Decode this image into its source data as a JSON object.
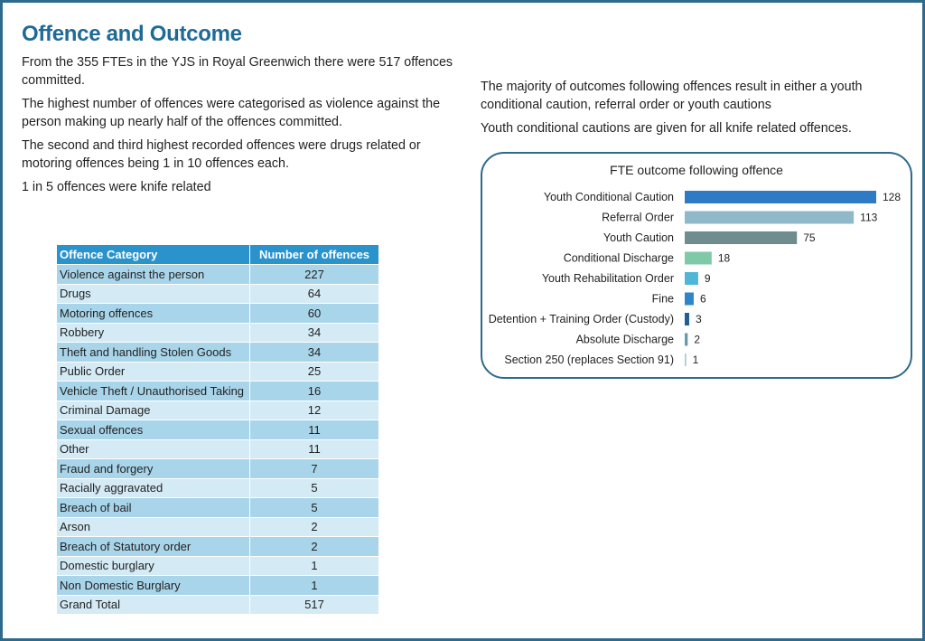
{
  "title": "Offence and Outcome",
  "left_paragraphs": [
    "From the 355 FTEs in the YJS in Royal Greenwich there were 517 offences committed.",
    "The highest number of offences were categorised as violence against the person making up nearly half of the offences committed.",
    "The second and third highest recorded offences were drugs related or motoring offences being 1 in 10 offences each.",
    "1 in 5 offences were knife related"
  ],
  "right_paragraphs": [
    "The majority of outcomes following offences result in either a youth conditional caution, referral order or youth cautions",
    "Youth conditional cautions are given for all knife related offences."
  ],
  "offence_table": {
    "headers": [
      "Offence Category",
      "Number of offences"
    ],
    "rows": [
      [
        "Violence against the person",
        "227"
      ],
      [
        "Drugs",
        "64"
      ],
      [
        "Motoring offences",
        "60"
      ],
      [
        "Robbery",
        "34"
      ],
      [
        "Theft and handling Stolen Goods",
        "34"
      ],
      [
        "Public Order",
        "25"
      ],
      [
        "Vehicle Theft / Unauthorised Taking",
        "16"
      ],
      [
        "Criminal Damage",
        "12"
      ],
      [
        "Sexual offences",
        "11"
      ],
      [
        "Other",
        "11"
      ],
      [
        "Fraud and forgery",
        "7"
      ],
      [
        "Racially aggravated",
        "5"
      ],
      [
        "Breach of bail",
        "5"
      ],
      [
        "Arson",
        "2"
      ],
      [
        "Breach of Statutory order",
        "2"
      ],
      [
        "Domestic burglary",
        "1"
      ],
      [
        "Non Domestic Burglary",
        "1"
      ],
      [
        "Grand Total",
        "517"
      ]
    ]
  },
  "chart_data": {
    "type": "bar",
    "orientation": "horizontal",
    "title": "FTE outcome following offence",
    "categories": [
      "Youth Conditional Caution",
      "Referral Order",
      "Youth Caution",
      "Conditional Discharge",
      "Youth Rehabilitation Order",
      "Fine",
      "Detention + Training Order (Custody)",
      "Absolute Discharge",
      "Section 250 (replaces Section 91)"
    ],
    "values": [
      128,
      113,
      75,
      18,
      9,
      6,
      3,
      2,
      1
    ],
    "colors": [
      "#2e7ac4",
      "#8fb8c8",
      "#6f8c8e",
      "#7fc8a8",
      "#4fb6d6",
      "#2e86c8",
      "#1f5f96",
      "#6a9aaa",
      "#a8c8d4"
    ],
    "xlim": [
      0,
      128
    ],
    "grid": false,
    "legend": "none",
    "data_labels": true
  }
}
